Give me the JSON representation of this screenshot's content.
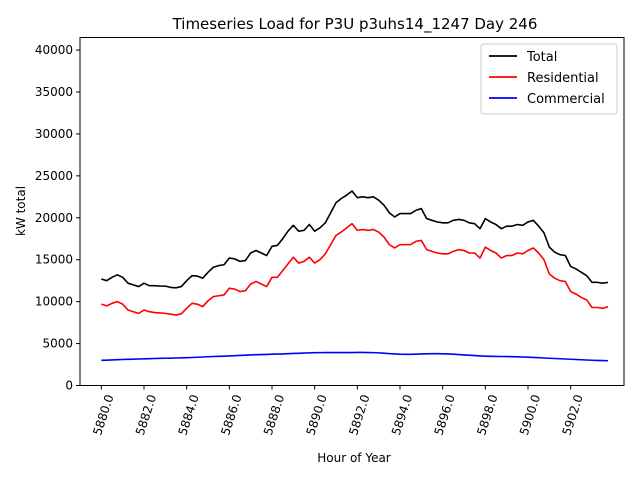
{
  "chart_data": {
    "type": "line",
    "title": "Timeseries Load for P3U p3uhs14_1247  Day 246",
    "xlabel": "Hour of Year",
    "ylabel": "kW total",
    "xlim": [
      5879,
      5904.5
    ],
    "ylim": [
      0,
      41500
    ],
    "xticks": [
      5880,
      5882,
      5884,
      5886,
      5888,
      5890,
      5892,
      5894,
      5896,
      5898,
      5900,
      5902
    ],
    "xtick_labels": [
      "5880.0",
      "5882.0",
      "5884.0",
      "5886.0",
      "5888.0",
      "5890.0",
      "5892.0",
      "5894.0",
      "5896.0",
      "5898.0",
      "5900.0",
      "5902.0"
    ],
    "yticks": [
      0,
      5000,
      10000,
      15000,
      20000,
      25000,
      30000,
      35000,
      40000
    ],
    "ytick_labels": [
      "0",
      "5000",
      "10000",
      "15000",
      "20000",
      "25000",
      "30000",
      "35000",
      "40000"
    ],
    "grid": false,
    "legend_position": "top-right",
    "x": [
      5880.0,
      5880.25,
      5880.5,
      5880.75,
      5881.0,
      5881.25,
      5881.5,
      5881.75,
      5882.0,
      5882.25,
      5882.5,
      5882.75,
      5883.0,
      5883.25,
      5883.5,
      5883.75,
      5884.0,
      5884.25,
      5884.5,
      5884.75,
      5885.0,
      5885.25,
      5885.5,
      5885.75,
      5886.0,
      5886.25,
      5886.5,
      5886.75,
      5887.0,
      5887.25,
      5887.5,
      5887.75,
      5888.0,
      5888.25,
      5888.5,
      5888.75,
      5889.0,
      5889.25,
      5889.5,
      5889.75,
      5890.0,
      5890.25,
      5890.5,
      5890.75,
      5891.0,
      5891.25,
      5891.5,
      5891.75,
      5892.0,
      5892.25,
      5892.5,
      5892.75,
      5893.0,
      5893.25,
      5893.5,
      5893.75,
      5894.0,
      5894.25,
      5894.5,
      5894.75,
      5895.0,
      5895.25,
      5895.5,
      5895.75,
      5896.0,
      5896.25,
      5896.5,
      5896.75,
      5897.0,
      5897.25,
      5897.5,
      5897.75,
      5898.0,
      5898.25,
      5898.5,
      5898.75,
      5899.0,
      5899.25,
      5899.5,
      5899.75,
      5900.0,
      5900.25,
      5900.5,
      5900.75,
      5901.0,
      5901.25,
      5901.5,
      5901.75,
      5902.0,
      5902.25,
      5902.5,
      5902.75,
      5903.0,
      5903.25,
      5903.5,
      5903.75
    ],
    "series": [
      {
        "name": "Total",
        "color": "#000000",
        "values": [
          12700,
          12500,
          12900,
          13200,
          12900,
          12200,
          12000,
          11800,
          12200,
          11900,
          11900,
          11850,
          11850,
          11700,
          11650,
          11800,
          12500,
          13100,
          13050,
          12800,
          13500,
          14100,
          14300,
          14400,
          15200,
          15100,
          14800,
          14900,
          15800,
          16100,
          15800,
          15500,
          16600,
          16700,
          17500,
          18400,
          19100,
          18400,
          18500,
          19200,
          18400,
          18800,
          19400,
          20600,
          21800,
          22300,
          22700,
          23200,
          22400,
          22500,
          22400,
          22500,
          22100,
          21500,
          20600,
          20100,
          20500,
          20500,
          20500,
          20900,
          21100,
          19900,
          19700,
          19500,
          19400,
          19400,
          19700,
          19800,
          19700,
          19400,
          19300,
          18700,
          19900,
          19500,
          19200,
          18700,
          19000,
          19000,
          19200,
          19100,
          19500,
          19700,
          19000,
          18200,
          16500,
          15900,
          15600,
          15500,
          14200,
          13900,
          13500,
          13100,
          12300,
          12300,
          12200,
          12300
        ]
      },
      {
        "name": "Residential",
        "color": "#ff0000",
        "values": [
          9700,
          9500,
          9800,
          10000,
          9700,
          9000,
          8800,
          8600,
          9000,
          8800,
          8700,
          8650,
          8600,
          8500,
          8400,
          8550,
          9200,
          9800,
          9700,
          9400,
          10100,
          10600,
          10700,
          10800,
          11600,
          11500,
          11200,
          11300,
          12100,
          12400,
          12100,
          11800,
          12900,
          12900,
          13700,
          14500,
          15300,
          14600,
          14800,
          15300,
          14600,
          15000,
          15700,
          16800,
          17900,
          18300,
          18800,
          19300,
          18500,
          18600,
          18500,
          18600,
          18300,
          17700,
          16800,
          16400,
          16800,
          16800,
          16800,
          17200,
          17300,
          16200,
          16000,
          15800,
          15700,
          15700,
          16000,
          16200,
          16100,
          15800,
          15800,
          15200,
          16500,
          16100,
          15800,
          15200,
          15500,
          15500,
          15800,
          15700,
          16100,
          16400,
          15800,
          15000,
          13300,
          12800,
          12500,
          12400,
          11200,
          10900,
          10500,
          10200,
          9300,
          9300,
          9200,
          9400
        ]
      },
      {
        "name": "Commercial",
        "color": "#0000ff",
        "values": [
          3000,
          3020,
          3050,
          3080,
          3100,
          3120,
          3140,
          3160,
          3180,
          3200,
          3220,
          3240,
          3250,
          3260,
          3280,
          3300,
          3320,
          3340,
          3370,
          3400,
          3430,
          3460,
          3480,
          3500,
          3530,
          3560,
          3590,
          3620,
          3650,
          3670,
          3690,
          3710,
          3730,
          3750,
          3770,
          3790,
          3820,
          3840,
          3870,
          3890,
          3910,
          3920,
          3930,
          3930,
          3930,
          3930,
          3930,
          3930,
          3940,
          3940,
          3930,
          3920,
          3890,
          3850,
          3800,
          3760,
          3730,
          3720,
          3720,
          3740,
          3760,
          3780,
          3790,
          3790,
          3780,
          3760,
          3730,
          3690,
          3650,
          3610,
          3570,
          3530,
          3500,
          3480,
          3470,
          3460,
          3450,
          3440,
          3420,
          3400,
          3380,
          3350,
          3320,
          3280,
          3250,
          3220,
          3190,
          3160,
          3130,
          3100,
          3070,
          3040,
          3010,
          2990,
          2970,
          2950
        ]
      }
    ]
  }
}
